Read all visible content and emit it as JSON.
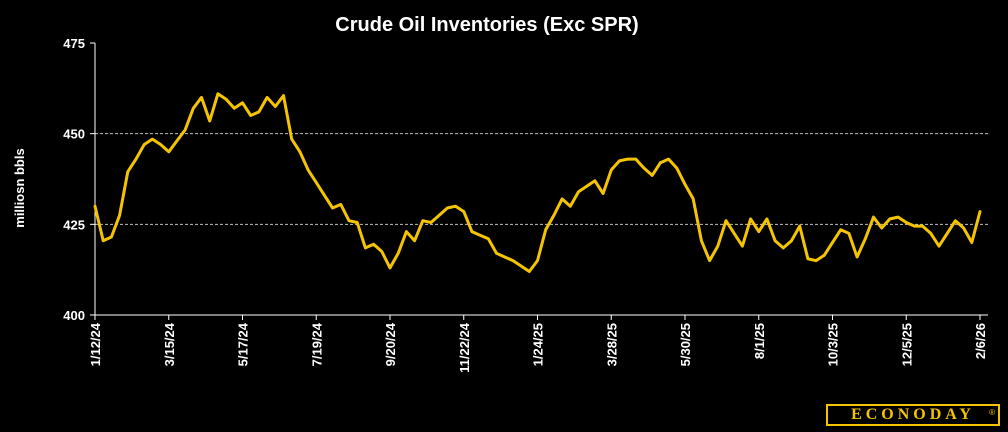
{
  "colors": {
    "background": "#000000",
    "line": "#f5c400",
    "text": "#ffffff",
    "grid": "#bfbfbf",
    "logo": "#f5c400"
  },
  "logo": {
    "text": "ECONODAY",
    "mark": "®"
  },
  "chart_data": {
    "type": "line",
    "title": "Crude Oil Inventories (Exc SPR)",
    "ylabel": "milliosn bbls",
    "xlabel": "",
    "ylim": [
      400,
      475
    ],
    "yticks": [
      400,
      425,
      450,
      475
    ],
    "grid": "horizontal dashed at 425 and 450",
    "xtick_labels": [
      "1/12/24",
      "3/15/24",
      "5/17/24",
      "7/19/24",
      "9/20/24",
      "11/22/24",
      "1/24/25",
      "3/28/25",
      "5/30/25",
      "8/1/25",
      "10/3/25",
      "12/5/25",
      "2/6/26"
    ],
    "series": [
      {
        "name": "",
        "values": [
          430.0,
          420.5,
          421.5,
          427.5,
          439.5,
          443.0,
          447.0,
          448.5,
          447.0,
          445.0,
          448.0,
          451.0,
          457.0,
          460.0,
          453.5,
          461.0,
          459.5,
          457.0,
          458.5,
          455.0,
          456.0,
          460.0,
          457.5,
          460.5,
          448.5,
          445.0,
          440.0,
          436.5,
          433.0,
          429.5,
          430.5,
          426.0,
          425.5,
          418.5,
          419.5,
          417.5,
          413.0,
          417.0,
          423.0,
          420.5,
          426.0,
          425.5,
          427.5,
          429.5,
          430.0,
          428.5,
          423.0,
          422.0,
          421.0,
          417.0,
          416.0,
          415.0,
          413.5,
          412.0,
          415.0,
          423.5,
          427.5,
          432.0,
          430.0,
          434.0,
          435.5,
          437.0,
          433.5,
          440.0,
          442.5,
          443.0,
          443.0,
          440.5,
          438.5,
          442.0,
          443.0,
          440.5,
          436.0,
          432.0,
          420.5,
          415.0,
          419.0,
          426.0,
          422.5,
          419.0,
          426.5,
          423.0,
          426.5,
          420.5,
          418.5,
          420.5,
          424.5,
          415.5,
          415.0,
          416.5,
          420.0,
          423.5,
          422.5,
          416.0,
          421.0,
          427.0,
          424.0,
          426.5,
          427.0,
          425.5,
          424.5,
          424.5,
          422.5,
          419.0,
          422.5,
          426.0,
          424.0,
          420.0,
          428.5
        ]
      }
    ]
  }
}
